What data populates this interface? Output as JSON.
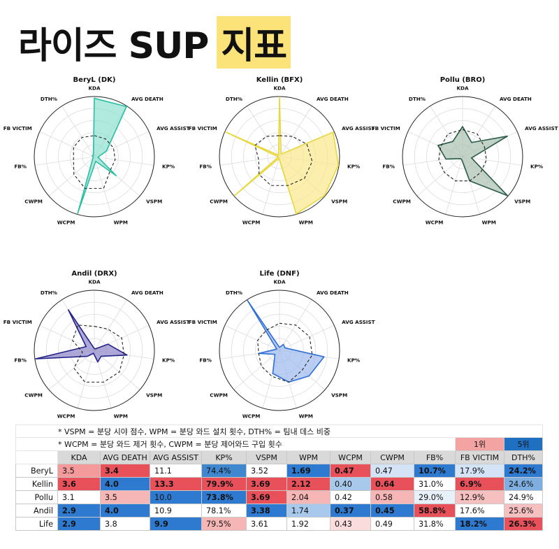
{
  "title": {
    "prefix": "라이즈 SUP",
    "highlight": "지표"
  },
  "axes": [
    "KDA",
    "AVG DEATH",
    "AVG ASSIST",
    "KP%",
    "VSPM",
    "WPM",
    "WCPM",
    "CWPM",
    "FB%",
    "FB VICTIM",
    "DTH%"
  ],
  "chart_data": [
    {
      "type": "radar",
      "title": "BeryL (DK)",
      "series_color": "#2bbfa3",
      "fill_color": "#8ee0cf",
      "reference": [
        0.35,
        0.35,
        0.35,
        0.35,
        0.35,
        0.55,
        0.55,
        0.45,
        0.35,
        0.38,
        0.38
      ],
      "values": [
        0.97,
        0.99,
        0.22,
        0.06,
        0.48,
        0.08,
        0.98,
        0.03,
        0.02,
        0.04,
        0.03
      ]
    },
    {
      "type": "radar",
      "title": "Kellin (BFX)",
      "series_color": "#e8d840",
      "fill_color": "#fbe88a",
      "reference": [
        0.35,
        0.4,
        0.5,
        0.55,
        0.55,
        0.5,
        0.5,
        0.45,
        0.35,
        0.45,
        0.4
      ],
      "values": [
        0.99,
        0.05,
        0.98,
        0.99,
        0.99,
        0.99,
        0.03,
        0.99,
        0.02,
        0.99,
        0.03
      ]
    },
    {
      "type": "radar",
      "title": "Pollu (BRO)",
      "series_color": "#2a5a48",
      "fill_color": "#a9c0b0",
      "reference": [
        0.45,
        0.45,
        0.4,
        0.4,
        0.4,
        0.42,
        0.42,
        0.4,
        0.4,
        0.4,
        0.45
      ],
      "values": [
        0.5,
        0.28,
        0.82,
        0.15,
        0.99,
        0.42,
        0.05,
        0.05,
        0.28,
        0.45,
        0.3
      ]
    },
    {
      "type": "radar",
      "title": "Andil (DRX)",
      "series_color": "#232388",
      "fill_color": "#8b84c8",
      "reference": [
        0.4,
        0.42,
        0.5,
        0.5,
        0.55,
        0.55,
        0.55,
        0.45,
        0.2,
        0.4,
        0.5
      ],
      "values": [
        0.03,
        0.03,
        0.25,
        0.55,
        0.15,
        0.2,
        0.05,
        0.15,
        0.99,
        0.15,
        0.8
      ]
    },
    {
      "type": "radar",
      "title": "Life (DNF)",
      "series_color": "#2e6fd8",
      "fill_color": "#9db8ec",
      "reference": [
        0.45,
        0.5,
        0.55,
        0.55,
        0.5,
        0.55,
        0.45,
        0.4,
        0.35,
        0.4,
        0.4
      ],
      "values": [
        0.05,
        0.12,
        0.1,
        0.75,
        0.65,
        0.55,
        0.4,
        0.1,
        0.35,
        0.05,
        0.99
      ]
    }
  ],
  "table": {
    "notes": [
      "* VSPM = 분당 시야 점수, WPM = 분당 와드 설치 횟수, DTH% = 팀내 데스 비중",
      "* WCPM = 분당 와드 제거 횟수, CWPM = 분당 제어와드 구입 횟수"
    ],
    "legend": [
      {
        "label": "1위",
        "color": "#f4a3a3"
      },
      {
        "label": "5위",
        "color": "#1f70c0"
      }
    ],
    "headers": [
      "KDA",
      "AVG DEATH",
      "AVG ASSIST",
      "KP%",
      "VSPM",
      "WPM",
      "WCPM",
      "CWPM",
      "FB%",
      "FB VICTIM",
      "DTH%"
    ],
    "rows": [
      {
        "name": "BeryL",
        "cells": [
          {
            "v": "3.5",
            "bg": "#f49a9a",
            "b": false
          },
          {
            "v": "3.4",
            "bg": "#e8505a",
            "b": true
          },
          {
            "v": "11.1",
            "bg": "#ffffff",
            "b": false
          },
          {
            "v": "74.4%",
            "bg": "#3f88d0",
            "b": false
          },
          {
            "v": "3.52",
            "bg": "#ffffff",
            "b": false
          },
          {
            "v": "1.69",
            "bg": "#2e7ad0",
            "b": true
          },
          {
            "v": "0.47",
            "bg": "#e8505a",
            "b": true
          },
          {
            "v": "0.47",
            "bg": "#d4e3f5",
            "b": false
          },
          {
            "v": "10.7%",
            "bg": "#2e7ad0",
            "b": true
          },
          {
            "v": "17.9%",
            "bg": "#d4e3f5",
            "b": false
          },
          {
            "v": "24.2%",
            "bg": "#2e7ad0",
            "b": true
          }
        ]
      },
      {
        "name": "Kellin",
        "cells": [
          {
            "v": "3.6",
            "bg": "#e8505a",
            "b": true
          },
          {
            "v": "4.0",
            "bg": "#2e7ad0",
            "b": true
          },
          {
            "v": "13.3",
            "bg": "#e8505a",
            "b": true
          },
          {
            "v": "79.9%",
            "bg": "#e8505a",
            "b": true
          },
          {
            "v": "3.69",
            "bg": "#e8505a",
            "b": true
          },
          {
            "v": "2.12",
            "bg": "#e8505a",
            "b": true
          },
          {
            "v": "0.40",
            "bg": "#a9c9ec",
            "b": false
          },
          {
            "v": "0.64",
            "bg": "#e8505a",
            "b": true
          },
          {
            "v": "31.0%",
            "bg": "#ffffff",
            "b": false
          },
          {
            "v": "6.9%",
            "bg": "#e8505a",
            "b": true
          },
          {
            "v": "24.6%",
            "bg": "#7eafe0",
            "b": false
          }
        ]
      },
      {
        "name": "Pollu",
        "cells": [
          {
            "v": "3.1",
            "bg": "#ffffff",
            "b": false
          },
          {
            "v": "3.5",
            "bg": "#f7b6b6",
            "b": false
          },
          {
            "v": "10.0",
            "bg": "#2e7ad0",
            "b": false
          },
          {
            "v": "73.8%",
            "bg": "#2e7ad0",
            "b": true
          },
          {
            "v": "3.69",
            "bg": "#e8505a",
            "b": true
          },
          {
            "v": "2.04",
            "bg": "#f7b6b6",
            "b": false
          },
          {
            "v": "0.42",
            "bg": "#ffffff",
            "b": false
          },
          {
            "v": "0.58",
            "bg": "#f7b6b6",
            "b": false
          },
          {
            "v": "29.0%",
            "bg": "#e8f0fa",
            "b": false
          },
          {
            "v": "12.9%",
            "bg": "#f7c0c0",
            "b": false
          },
          {
            "v": "24.9%",
            "bg": "#ffffff",
            "b": false
          }
        ]
      },
      {
        "name": "Andil",
        "cells": [
          {
            "v": "2.9",
            "bg": "#2e7ad0",
            "b": true
          },
          {
            "v": "4.0",
            "bg": "#2e7ad0",
            "b": true
          },
          {
            "v": "10.9",
            "bg": "#ffffff",
            "b": false
          },
          {
            "v": "78.1%",
            "bg": "#ffffff",
            "b": false
          },
          {
            "v": "3.38",
            "bg": "#2e7ad0",
            "b": true
          },
          {
            "v": "1.74",
            "bg": "#a9c9ec",
            "b": false
          },
          {
            "v": "0.37",
            "bg": "#2e7ad0",
            "b": true
          },
          {
            "v": "0.45",
            "bg": "#2e7ad0",
            "b": true
          },
          {
            "v": "58.8%",
            "bg": "#e8505a",
            "b": true
          },
          {
            "v": "17.6%",
            "bg": "#ffffff",
            "b": false
          },
          {
            "v": "25.6%",
            "bg": "#f7c0c0",
            "b": false
          }
        ]
      },
      {
        "name": "Life",
        "cells": [
          {
            "v": "2.9",
            "bg": "#2e7ad0",
            "b": true
          },
          {
            "v": "3.8",
            "bg": "#ffffff",
            "b": false
          },
          {
            "v": "9.9",
            "bg": "#2e7ad0",
            "b": true
          },
          {
            "v": "79.5%",
            "bg": "#f7b6b6",
            "b": false
          },
          {
            "v": "3.61",
            "bg": "#ffffff",
            "b": false
          },
          {
            "v": "1.92",
            "bg": "#ffffff",
            "b": false
          },
          {
            "v": "0.43",
            "bg": "#fbdcdc",
            "b": false
          },
          {
            "v": "0.49",
            "bg": "#ffffff",
            "b": false
          },
          {
            "v": "31.8%",
            "bg": "#ffffff",
            "b": false
          },
          {
            "v": "18.2%",
            "bg": "#2e7ad0",
            "b": true
          },
          {
            "v": "26.3%",
            "bg": "#e8505a",
            "b": true
          }
        ]
      }
    ]
  }
}
